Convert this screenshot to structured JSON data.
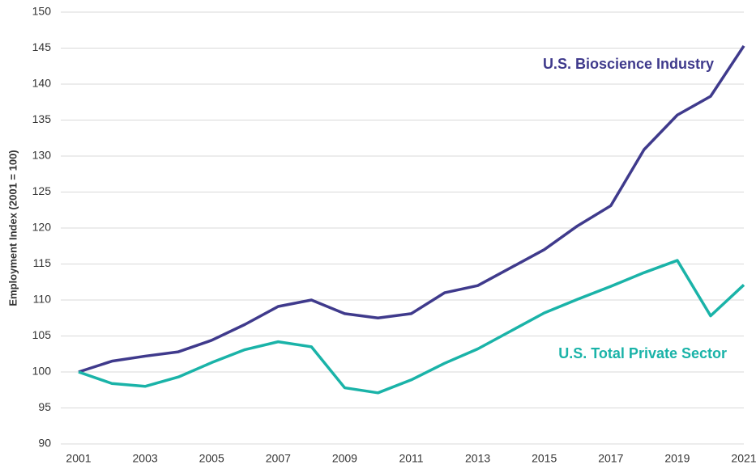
{
  "chart_data": {
    "type": "line",
    "y_axis_label": "Employment Index (2001 = 100)",
    "x": [
      2001,
      2002,
      2003,
      2004,
      2005,
      2006,
      2007,
      2008,
      2009,
      2010,
      2011,
      2012,
      2013,
      2014,
      2015,
      2016,
      2017,
      2018,
      2019,
      2020,
      2021
    ],
    "series": [
      {
        "name": "U.S. Bioscience Industry",
        "color": "#3f3a8c",
        "values": [
          100,
          101.5,
          102.2,
          102.8,
          104.4,
          106.6,
          109.1,
          110,
          108.1,
          107.5,
          108.1,
          111,
          112,
          114.5,
          117,
          120.3,
          123.1,
          130.9,
          135.7,
          138.3,
          145.3
        ]
      },
      {
        "name": "U.S. Total Private Sector",
        "color": "#1ab3a8",
        "values": [
          100,
          98.4,
          98,
          99.3,
          101.3,
          103.1,
          104.2,
          103.5,
          97.8,
          97.1,
          98.9,
          101.2,
          103.2,
          105.7,
          108.2,
          110.1,
          111.9,
          113.8,
          115.5,
          107.8,
          112.1
        ]
      }
    ],
    "xlim": [
      2001,
      2021
    ],
    "xticks": [
      2001,
      2003,
      2005,
      2007,
      2009,
      2011,
      2013,
      2015,
      2017,
      2019,
      2021
    ],
    "ylim": [
      90,
      150
    ],
    "yticks": [
      90,
      95,
      100,
      105,
      110,
      115,
      120,
      125,
      130,
      135,
      140,
      145,
      150
    ],
    "grid": true
  }
}
